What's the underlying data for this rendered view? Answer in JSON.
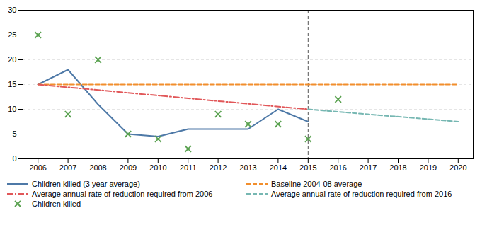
{
  "chart_data": {
    "type": "line",
    "xlim": [
      2005.5,
      2020.5
    ],
    "ylim": [
      0,
      30
    ],
    "xticks": [
      2006,
      2007,
      2008,
      2009,
      2010,
      2011,
      2012,
      2013,
      2014,
      2015,
      2016,
      2017,
      2018,
      2019,
      2020
    ],
    "yticks": [
      0,
      5,
      10,
      15,
      20,
      25,
      30
    ],
    "grid": true,
    "legend": "bottom",
    "vlines": [
      2015
    ],
    "series": [
      {
        "name": "Children killed (3 year average)",
        "type": "line",
        "line_style": "solid",
        "x": [
          2006,
          2007,
          2008,
          2009,
          2010,
          2011,
          2012,
          2013,
          2014,
          2015
        ],
        "values": [
          15,
          18,
          11,
          5,
          4.5,
          6,
          6,
          6,
          10,
          7.5
        ]
      },
      {
        "name": "Baseline 2004-08 average",
        "type": "line",
        "line_style": "dashed",
        "x": [
          2006,
          2020
        ],
        "values": [
          15,
          15
        ]
      },
      {
        "name": "Average annual rate of reduction required from 2006",
        "type": "line",
        "line_style": "dashdot",
        "x": [
          2006,
          2015
        ],
        "values": [
          15,
          10
        ]
      },
      {
        "name": "Average annual rate of reduction required from 2016",
        "type": "line",
        "line_style": "dashed",
        "x": [
          2015,
          2020
        ],
        "values": [
          10,
          7.5
        ]
      },
      {
        "name": "Children killed",
        "type": "scatter",
        "marker": "x",
        "x": [
          2006,
          2007,
          2008,
          2009,
          2010,
          2011,
          2012,
          2013,
          2014,
          2015,
          2016
        ],
        "values": [
          25,
          9,
          20,
          5,
          4,
          2,
          9,
          7,
          7,
          4,
          12
        ]
      }
    ]
  }
}
